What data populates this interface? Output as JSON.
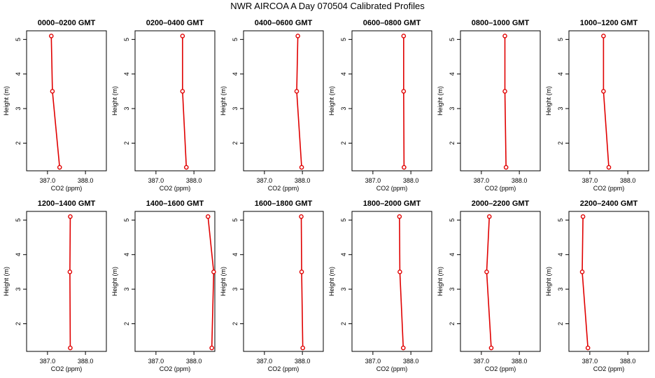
{
  "figure": {
    "title": "NWR AIRCOA A  Day 070504  Calibrated Profiles"
  },
  "colors": {
    "line": "#e00000",
    "point": "#e00000",
    "axis": "#000000"
  },
  "chart_data": [
    {
      "type": "line",
      "title": "0000–0200 GMT",
      "xlabel": "CO2 (ppm)",
      "ylabel": "Height (m)",
      "xlim": [
        386.45,
        388.55
      ],
      "ylim": [
        1.2,
        5.25
      ],
      "xticks": [
        "387.0",
        "388.0"
      ],
      "yticks": [
        "2",
        "3",
        "4",
        "5"
      ],
      "x": [
        387.32,
        387.13,
        387.1
      ],
      "y": [
        1.3,
        3.5,
        5.1
      ]
    },
    {
      "type": "line",
      "title": "0200–0400 GMT",
      "xlabel": "CO2 (ppm)",
      "ylabel": "Height (m)",
      "xlim": [
        386.45,
        388.55
      ],
      "ylim": [
        1.2,
        5.25
      ],
      "xticks": [
        "387.0",
        "388.0"
      ],
      "yticks": [
        "2",
        "3",
        "4",
        "5"
      ],
      "x": [
        387.8,
        387.7,
        387.7
      ],
      "y": [
        1.3,
        3.5,
        5.1
      ]
    },
    {
      "type": "line",
      "title": "0400–0600 GMT",
      "xlabel": "CO2 (ppm)",
      "ylabel": "Height (m)",
      "xlim": [
        386.45,
        388.55
      ],
      "ylim": [
        1.2,
        5.25
      ],
      "xticks": [
        "387.0",
        "388.0"
      ],
      "yticks": [
        "2",
        "3",
        "4",
        "5"
      ],
      "x": [
        387.98,
        387.85,
        387.88
      ],
      "y": [
        1.3,
        3.5,
        5.1
      ]
    },
    {
      "type": "line",
      "title": "0600–0800 GMT",
      "xlabel": "CO2 (ppm)",
      "ylabel": "Height (m)",
      "xlim": [
        386.45,
        388.55
      ],
      "ylim": [
        1.2,
        5.25
      ],
      "xticks": [
        "387.0",
        "388.0"
      ],
      "yticks": [
        "2",
        "3",
        "4",
        "5"
      ],
      "x": [
        387.82,
        387.81,
        387.81
      ],
      "y": [
        1.3,
        3.5,
        5.1
      ]
    },
    {
      "type": "line",
      "title": "0800–1000 GMT",
      "xlabel": "CO2 (ppm)",
      "ylabel": "Height (m)",
      "xlim": [
        386.45,
        388.55
      ],
      "ylim": [
        1.2,
        5.25
      ],
      "xticks": [
        "387.0",
        "388.0"
      ],
      "yticks": [
        "2",
        "3",
        "4",
        "5"
      ],
      "x": [
        387.65,
        387.62,
        387.62
      ],
      "y": [
        1.3,
        3.5,
        5.1
      ]
    },
    {
      "type": "line",
      "title": "1000–1200 GMT",
      "xlabel": "CO2 (ppm)",
      "ylabel": "Height (m)",
      "xlim": [
        386.45,
        388.55
      ],
      "ylim": [
        1.2,
        5.25
      ],
      "xticks": [
        "387.0",
        "388.0"
      ],
      "yticks": [
        "2",
        "3",
        "4",
        "5"
      ],
      "x": [
        387.5,
        387.36,
        387.36
      ],
      "y": [
        1.3,
        3.5,
        5.1
      ]
    },
    {
      "type": "line",
      "title": "1200–1400 GMT",
      "xlabel": "CO2 (ppm)",
      "ylabel": "Height (m)",
      "xlim": [
        386.45,
        388.55
      ],
      "ylim": [
        1.2,
        5.25
      ],
      "xticks": [
        "387.0",
        "388.0"
      ],
      "yticks": [
        "2",
        "3",
        "4",
        "5"
      ],
      "x": [
        387.6,
        387.59,
        387.6
      ],
      "y": [
        1.3,
        3.5,
        5.1
      ]
    },
    {
      "type": "line",
      "title": "1400–1600 GMT",
      "xlabel": "CO2 (ppm)",
      "ylabel": "Height (m)",
      "xlim": [
        386.45,
        388.55
      ],
      "ylim": [
        1.2,
        5.25
      ],
      "xticks": [
        "387.0",
        "388.0"
      ],
      "yticks": [
        "2",
        "3",
        "4",
        "5"
      ],
      "x": [
        388.47,
        388.52,
        388.37
      ],
      "y": [
        1.3,
        3.5,
        5.1
      ]
    },
    {
      "type": "line",
      "title": "1600–1800 GMT",
      "xlabel": "CO2 (ppm)",
      "ylabel": "Height (m)",
      "xlim": [
        386.45,
        388.55
      ],
      "ylim": [
        1.2,
        5.25
      ],
      "xticks": [
        "387.0",
        "388.0"
      ],
      "yticks": [
        "2",
        "3",
        "4",
        "5"
      ],
      "x": [
        388.01,
        387.98,
        387.97
      ],
      "y": [
        1.3,
        3.5,
        5.1
      ]
    },
    {
      "type": "line",
      "title": "1800–2000 GMT",
      "xlabel": "CO2 (ppm)",
      "ylabel": "Height (m)",
      "xlim": [
        386.45,
        388.55
      ],
      "ylim": [
        1.2,
        5.25
      ],
      "xticks": [
        "387.0",
        "388.0"
      ],
      "yticks": [
        "2",
        "3",
        "4",
        "5"
      ],
      "x": [
        387.8,
        387.71,
        387.7
      ],
      "y": [
        1.3,
        3.5,
        5.1
      ]
    },
    {
      "type": "line",
      "title": "2000–2200 GMT",
      "xlabel": "CO2 (ppm)",
      "ylabel": "Height (m)",
      "xlim": [
        386.45,
        388.55
      ],
      "ylim": [
        1.2,
        5.25
      ],
      "xticks": [
        "387.0",
        "388.0"
      ],
      "yticks": [
        "2",
        "3",
        "4",
        "5"
      ],
      "x": [
        387.26,
        387.14,
        387.21
      ],
      "y": [
        1.3,
        3.5,
        5.1
      ]
    },
    {
      "type": "line",
      "title": "2200–2400 GMT",
      "xlabel": "CO2 (ppm)",
      "ylabel": "Height (m)",
      "xlim": [
        386.45,
        388.55
      ],
      "ylim": [
        1.2,
        5.25
      ],
      "xticks": [
        "387.0",
        "388.0"
      ],
      "yticks": [
        "2",
        "3",
        "4",
        "5"
      ],
      "x": [
        386.95,
        386.8,
        386.82
      ],
      "y": [
        1.3,
        3.5,
        5.1
      ]
    }
  ]
}
